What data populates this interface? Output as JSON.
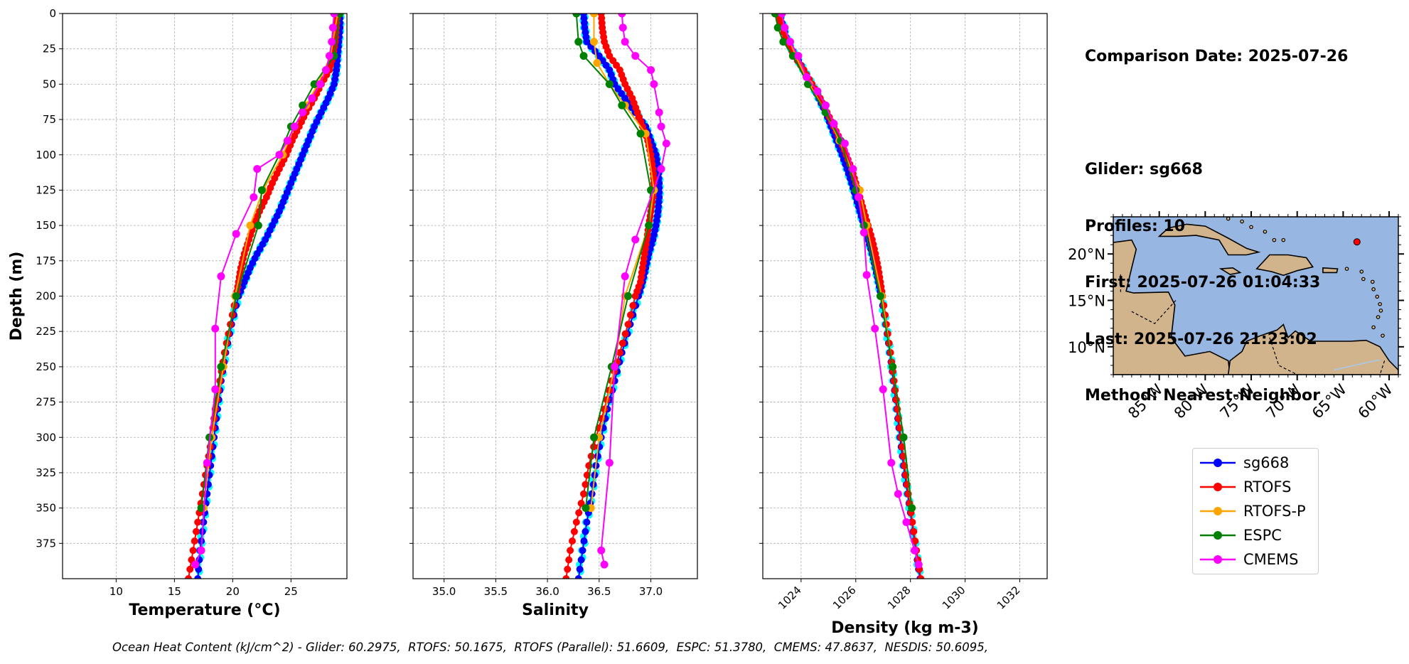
{
  "info": {
    "comparison": "Comparison Date: 2025-07-26",
    "glider": "Glider: sg668",
    "profiles": "Profiles: 10",
    "first": "First: 2025-07-26 01:04:33",
    "last": "Last: 2025-07-26 21:23:02",
    "method": "Method: Nearest-Neighbor"
  },
  "footer": "Ocean Heat Content (kJ/cm^2) - Glider: 60.2975,  RTOFS: 50.1675,  RTOFS (Parallel): 51.6609,  ESPC: 51.3780,  CMEMS: 47.8637,  NESDIS: 50.6095,",
  "colors": {
    "sg668": "#0000ff",
    "RTOFS": "#ff0000",
    "RTOFS-P": "#ffa500",
    "ESPC": "#008000",
    "CMEMS": "#ff00ff",
    "glider_scatter": "#00ffff"
  },
  "legend": [
    {
      "name": "sg668",
      "color": "#0000ff"
    },
    {
      "name": "RTOFS",
      "color": "#ff0000"
    },
    {
      "name": "RTOFS-P",
      "color": "#ffa500"
    },
    {
      "name": "ESPC",
      "color": "#008000"
    },
    {
      "name": "CMEMS",
      "color": "#ff00ff"
    }
  ],
  "chart_data": [
    {
      "type": "line",
      "xlabel": "Temperature (°C)",
      "ylabel": "Depth (m)",
      "xlim": [
        5.4,
        29.8
      ],
      "ylim": [
        400,
        0
      ],
      "xticks": [
        10,
        15,
        20,
        25
      ],
      "yticks": [
        0,
        25,
        50,
        75,
        100,
        125,
        150,
        175,
        200,
        225,
        250,
        275,
        300,
        325,
        350,
        375
      ],
      "grid": true,
      "depth": [
        0,
        10,
        20,
        30,
        40,
        50,
        60,
        70,
        80,
        90,
        100,
        110,
        120,
        130,
        140,
        150,
        160,
        170,
        180,
        190,
        200,
        220,
        240,
        260,
        280,
        300,
        320,
        340,
        360,
        380,
        400
      ],
      "series": [
        {
          "name": "sg668",
          "values": [
            29.2,
            29.2,
            29.1,
            29.0,
            28.9,
            28.7,
            28.2,
            27.6,
            27.0,
            26.5,
            26.0,
            25.5,
            25.0,
            24.5,
            24.0,
            23.4,
            22.8,
            22.1,
            21.5,
            21.0,
            20.5,
            19.9,
            19.4,
            19.0,
            18.7,
            18.4,
            18.1,
            17.8,
            17.5,
            17.2,
            17.0
          ]
        },
        {
          "name": "RTOFS",
          "values": [
            29.0,
            28.9,
            28.8,
            28.6,
            28.3,
            27.6,
            27.0,
            26.3,
            25.7,
            25.1,
            24.6,
            24.0,
            23.4,
            22.9,
            22.3,
            21.8,
            21.4,
            21.0,
            20.7,
            20.5,
            20.3,
            19.8,
            19.3,
            18.9,
            18.5,
            18.2,
            17.8,
            17.4,
            17.0,
            16.6,
            16.2
          ]
        },
        {
          "name": "RTOFS-P",
          "x": [
            29.0,
            28.4,
            27.3,
            26.3,
            25.3,
            24.3,
            22.6,
            21.5,
            20.2,
            19.2,
            18.2,
            17.5
          ],
          "y": [
            0,
            30,
            50,
            65,
            80,
            100,
            125,
            150,
            200,
            250,
            300,
            350
          ]
        },
        {
          "name": "ESPC",
          "x": [
            29.2,
            28.7,
            27.0,
            26.0,
            25.0,
            24.0,
            22.5,
            22.2,
            20.3,
            19.0,
            18.0,
            17.3
          ],
          "y": [
            0,
            30,
            50,
            65,
            80,
            100,
            125,
            150,
            200,
            250,
            300,
            350
          ]
        },
        {
          "name": "CMEMS",
          "x": [
            28.7,
            28.6,
            28.5,
            28.3,
            28.0,
            27.5,
            26.8,
            26.0,
            25.3,
            24.7,
            24.0,
            22.1,
            21.8,
            20.3,
            19.0,
            18.5,
            18.5,
            17.8,
            17.3,
            16.8
          ],
          "y": [
            0,
            10,
            20,
            30,
            40,
            50,
            60,
            70,
            80,
            90,
            100,
            110,
            130,
            156,
            186,
            223,
            266,
            318,
            380,
            390
          ]
        }
      ]
    },
    {
      "type": "line",
      "xlabel": "Salinity",
      "xlim": [
        34.7,
        37.45
      ],
      "ylim": [
        400,
        0
      ],
      "xticks": [
        35.0,
        35.5,
        36.0,
        36.5,
        37.0
      ],
      "grid": true,
      "depth": [
        0,
        10,
        20,
        30,
        40,
        50,
        60,
        70,
        80,
        90,
        100,
        110,
        120,
        130,
        140,
        150,
        160,
        170,
        180,
        190,
        200,
        220,
        240,
        260,
        280,
        300,
        320,
        340,
        360,
        380,
        400
      ],
      "series": [
        {
          "name": "sg668",
          "values": [
            36.35,
            36.36,
            36.38,
            36.5,
            36.6,
            36.65,
            36.75,
            36.85,
            36.95,
            37.0,
            37.05,
            37.07,
            37.08,
            37.08,
            37.07,
            37.05,
            37.02,
            36.98,
            36.95,
            36.92,
            36.88,
            36.8,
            36.72,
            36.65,
            36.58,
            36.52,
            36.47,
            36.43,
            36.38,
            36.34,
            36.3
          ]
        },
        {
          "name": "RTOFS",
          "values": [
            36.52,
            36.53,
            36.55,
            36.6,
            36.7,
            36.75,
            36.82,
            36.87,
            36.92,
            36.97,
            37.0,
            37.02,
            37.03,
            37.02,
            37.0,
            36.98,
            36.96,
            36.94,
            36.92,
            36.9,
            36.85,
            36.78,
            36.7,
            36.62,
            36.55,
            36.47,
            36.4,
            36.35,
            36.28,
            36.22,
            36.18
          ]
        },
        {
          "name": "RTOFS-P",
          "x": [
            36.45,
            36.45,
            36.48,
            36.6,
            36.75,
            36.95,
            37.03,
            36.98,
            36.75,
            36.65,
            36.5,
            36.42
          ],
          "y": [
            0,
            20,
            35,
            50,
            65,
            85,
            125,
            150,
            200,
            250,
            300,
            350
          ]
        },
        {
          "name": "ESPC",
          "x": [
            36.28,
            36.3,
            36.35,
            36.6,
            36.72,
            36.9,
            37.0,
            36.98,
            36.78,
            36.62,
            36.45,
            36.37
          ],
          "y": [
            0,
            20,
            30,
            50,
            65,
            85,
            125,
            150,
            200,
            250,
            300,
            350
          ]
        },
        {
          "name": "CMEMS",
          "x": [
            36.72,
            36.73,
            36.75,
            36.85,
            37.0,
            37.03,
            37.08,
            37.1,
            37.15,
            37.1,
            36.85,
            36.75,
            36.65,
            36.6,
            36.52,
            36.55
          ],
          "y": [
            0,
            10,
            20,
            30,
            40,
            50,
            70,
            80,
            92,
            110,
            160,
            186,
            250,
            318,
            380,
            390
          ]
        }
      ]
    },
    {
      "type": "line",
      "xlabel": "Density (kg m-3)",
      "xlim": [
        1022.6,
        1033.0
      ],
      "ylim": [
        400,
        0
      ],
      "xticks": [
        1024,
        1026,
        1028,
        1030,
        1032
      ],
      "grid": true,
      "depth": [
        0,
        10,
        20,
        30,
        40,
        50,
        60,
        70,
        80,
        90,
        100,
        110,
        120,
        130,
        140,
        150,
        160,
        170,
        180,
        190,
        200,
        220,
        240,
        260,
        280,
        300,
        320,
        340,
        360,
        380,
        400
      ],
      "series": [
        {
          "name": "sg668",
          "values": [
            1023.2,
            1023.35,
            1023.5,
            1023.8,
            1024.1,
            1024.4,
            1024.65,
            1024.9,
            1025.1,
            1025.3,
            1025.5,
            1025.68,
            1025.85,
            1026.0,
            1026.15,
            1026.3,
            1026.45,
            1026.6,
            1026.72,
            1026.83,
            1026.93,
            1027.1,
            1027.25,
            1027.38,
            1027.5,
            1027.62,
            1027.75,
            1027.9,
            1028.05,
            1028.2,
            1028.35
          ]
        },
        {
          "name": "RTOFS",
          "values": [
            1023.15,
            1023.3,
            1023.5,
            1023.75,
            1024.1,
            1024.4,
            1024.7,
            1024.95,
            1025.2,
            1025.45,
            1025.65,
            1025.85,
            1026.0,
            1026.15,
            1026.3,
            1026.45,
            1026.6,
            1026.72,
            1026.82,
            1026.9,
            1026.98,
            1027.12,
            1027.27,
            1027.4,
            1027.52,
            1027.65,
            1027.78,
            1027.92,
            1028.07,
            1028.22,
            1028.38
          ]
        },
        {
          "name": "RTOFS-P",
          "x": [
            1023.3,
            1023.4,
            1023.6,
            1023.8,
            1024.3,
            1024.9,
            1025.4,
            1026.15,
            1026.4,
            1026.95,
            1027.35,
            1027.75,
            1028.05
          ],
          "y": [
            0,
            10,
            20,
            30,
            50,
            70,
            90,
            125,
            150,
            200,
            250,
            300,
            350
          ]
        },
        {
          "name": "ESPC",
          "x": [
            1023.05,
            1023.15,
            1023.35,
            1023.7,
            1024.25,
            1024.9,
            1025.45,
            1026.0,
            1026.3,
            1026.9,
            1027.35,
            1027.75,
            1028.05
          ],
          "y": [
            0,
            10,
            20,
            30,
            50,
            70,
            90,
            125,
            150,
            200,
            250,
            300,
            350
          ]
        },
        {
          "name": "CMEMS",
          "x": [
            1023.3,
            1023.4,
            1023.6,
            1023.9,
            1024.2,
            1024.6,
            1024.9,
            1025.2,
            1025.6,
            1025.9,
            1026.1,
            1026.3,
            1026.4,
            1026.7,
            1027.0,
            1027.3,
            1027.55,
            1027.85,
            1028.15,
            1028.3
          ],
          "y": [
            0,
            10,
            20,
            30,
            45,
            55,
            65,
            78,
            92,
            110,
            130,
            155,
            185,
            223,
            266,
            318,
            340,
            360,
            380,
            390
          ]
        }
      ]
    },
    {
      "type": "map",
      "lon_ticks": [
        "85°W",
        "80°W",
        "75°W",
        "70°W",
        "65°W",
        "60°W"
      ],
      "lat_ticks": [
        "20°N",
        "15°N",
        "10°N"
      ],
      "lon_range": [
        -90,
        -59
      ],
      "lat_range": [
        7,
        24
      ],
      "glider_position": {
        "lon": -63.5,
        "lat": 21.3
      },
      "ocean_color": "#97b6e1",
      "land_color": "#d2b48c"
    }
  ]
}
